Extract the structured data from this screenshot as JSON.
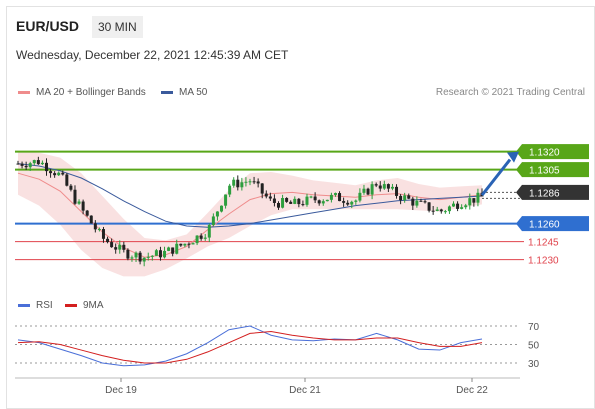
{
  "header": {
    "symbol": "EUR/USD",
    "timeframe": "30 MIN",
    "datetime": "Wednesday, December 22, 2021 12:45:39 AM CET"
  },
  "legend": {
    "ma20": "MA 20 + Bollinger Bands",
    "ma50": "MA 50",
    "copyright": "Research © 2021 Trading Central"
  },
  "rsi_legend": {
    "rsi": "RSI",
    "ma9": "9MA"
  },
  "colors": {
    "resistance": "#58a618",
    "support": "#2f6fd0",
    "secondary": "#e0434c",
    "ma20": "#ef8c8c",
    "ma50": "#3a5a9c",
    "band": "#f8d9d9",
    "arrow": "#2a63b5",
    "current": "#333333"
  },
  "chart_data": [
    {
      "type": "line",
      "title": "EUR/USD 30 MIN",
      "x_ticks": [
        "Dec 19",
        "Dec 21",
        "Dec 22"
      ],
      "levels": [
        {
          "name": "resistance",
          "value": 1.132,
          "label": "1.1320"
        },
        {
          "name": "resistance",
          "value": 1.1305,
          "label": "1.1305"
        },
        {
          "name": "current",
          "value": 1.1286,
          "label": "1.1286"
        },
        {
          "name": "pivot",
          "value": 1.126,
          "label": "1.1260"
        },
        {
          "name": "support",
          "value": 1.1245,
          "label": "1.1245"
        },
        {
          "name": "support",
          "value": 1.123,
          "label": "1.1230"
        }
      ],
      "series": [
        {
          "name": "MA 20",
          "values": [
            1.1302,
            1.1297,
            1.1287,
            1.127,
            1.1253,
            1.124,
            1.1232,
            1.1234,
            1.1241,
            1.1255,
            1.1268,
            1.128,
            1.1285,
            1.1286,
            1.1284,
            1.1283,
            1.1282,
            1.1284,
            1.1285,
            1.1282,
            1.128,
            1.1282,
            1.1284
          ]
        },
        {
          "name": "MA 50",
          "values": [
            1.131,
            1.1308,
            1.1304,
            1.1298,
            1.1289,
            1.1279,
            1.127,
            1.1262,
            1.1258,
            1.1257,
            1.1258,
            1.126,
            1.1263,
            1.1266,
            1.1269,
            1.1272,
            1.1275,
            1.1277,
            1.1279,
            1.128,
            1.1281,
            1.1282,
            1.1283
          ]
        },
        {
          "name": "Close",
          "values": [
            1.131,
            1.1312,
            1.13,
            1.1272,
            1.1248,
            1.1236,
            1.1232,
            1.1236,
            1.1244,
            1.1254,
            1.1292,
            1.1296,
            1.1278,
            1.1276,
            1.128,
            1.1282,
            1.1279,
            1.1294,
            1.1284,
            1.1276,
            1.127,
            1.1278,
            1.1282
          ]
        }
      ]
    },
    {
      "type": "line",
      "title": "RSI",
      "y_ticks": [
        70,
        50,
        30
      ],
      "series": [
        {
          "name": "RSI",
          "values": [
            55,
            52,
            45,
            38,
            30,
            27,
            28,
            32,
            40,
            52,
            66,
            70,
            60,
            55,
            54,
            56,
            55,
            62,
            55,
            45,
            44,
            52,
            56
          ]
        },
        {
          "name": "9MA",
          "values": [
            52,
            53,
            50,
            44,
            38,
            33,
            30,
            30,
            34,
            42,
            52,
            62,
            64,
            60,
            57,
            55,
            55,
            57,
            57,
            52,
            48,
            48,
            52
          ]
        }
      ]
    }
  ]
}
